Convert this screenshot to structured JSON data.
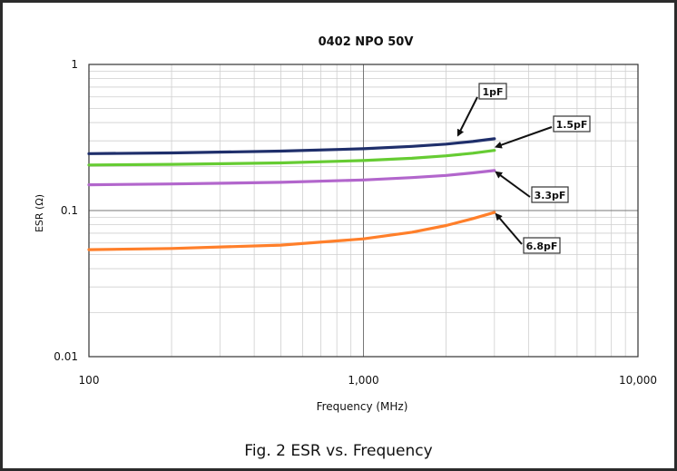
{
  "caption": "Fig. 2 ESR vs. Frequency",
  "chart_data": {
    "type": "line",
    "title": "0402 NPO 50V",
    "xlabel": "Frequency (MHz)",
    "ylabel": "ESR (Ω)",
    "x_scale": "log",
    "y_scale": "log",
    "xlim": [
      100,
      10000
    ],
    "ylim": [
      0.01,
      1
    ],
    "x_ticks": [
      {
        "value": 100,
        "label": "100"
      },
      {
        "value": 1000,
        "label": "1,000"
      },
      {
        "value": 10000,
        "label": "10,000"
      }
    ],
    "y_ticks": [
      {
        "value": 1,
        "label": "1"
      },
      {
        "value": 0.1,
        "label": "0.1"
      },
      {
        "value": 0.01,
        "label": "0.01"
      }
    ],
    "grid": true,
    "series": [
      {
        "name": "1pF",
        "color": "#1f2f6b",
        "x": [
          100,
          200,
          500,
          1000,
          1500,
          2000,
          2500,
          3000
        ],
        "y": [
          0.245,
          0.248,
          0.255,
          0.265,
          0.275,
          0.285,
          0.297,
          0.31
        ]
      },
      {
        "name": "1.5pF",
        "color": "#66cc33",
        "x": [
          100,
          200,
          500,
          1000,
          1500,
          2000,
          2500,
          3000
        ],
        "y": [
          0.205,
          0.207,
          0.212,
          0.22,
          0.228,
          0.237,
          0.247,
          0.258
        ]
      },
      {
        "name": "3.3pF",
        "color": "#b266cc",
        "x": [
          100,
          200,
          500,
          1000,
          1500,
          2000,
          2500,
          3000
        ],
        "y": [
          0.15,
          0.152,
          0.156,
          0.162,
          0.168,
          0.174,
          0.181,
          0.188
        ]
      },
      {
        "name": "6.8pF",
        "color": "#ff7f2a",
        "x": [
          100,
          200,
          500,
          1000,
          1500,
          2000,
          2500,
          3000
        ],
        "y": [
          0.054,
          0.055,
          0.058,
          0.064,
          0.071,
          0.079,
          0.088,
          0.097
        ]
      }
    ],
    "annotations": [
      {
        "series": "1pF",
        "text": "1pF"
      },
      {
        "series": "1.5pF",
        "text": "1.5pF"
      },
      {
        "series": "3.3pF",
        "text": "3.3pF"
      },
      {
        "series": "6.8pF",
        "text": "6.8pF"
      }
    ]
  }
}
